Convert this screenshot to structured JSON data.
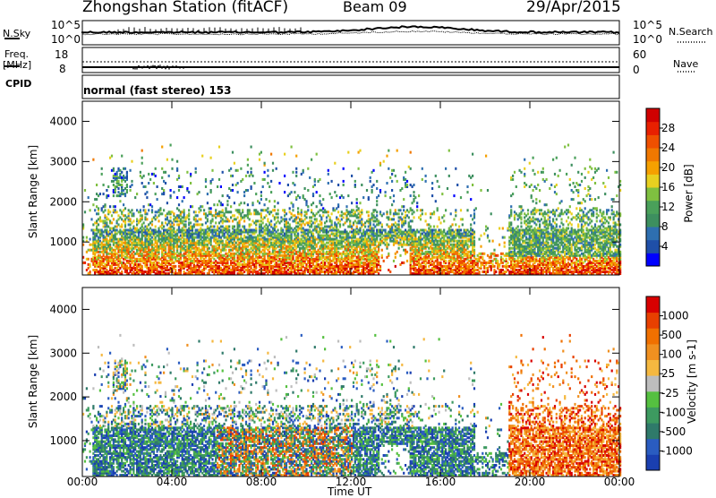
{
  "header": {
    "station": "Zhongshan Station (fitACF)",
    "beam": "Beam 09",
    "date": "29/Apr/2015"
  },
  "panels": {
    "nsky": {
      "label": "N.Sky",
      "top_tick": "10^5",
      "bottom_tick": "10^0",
      "right_top_tick": "10^5",
      "right_bottom_tick": "10^0",
      "right_label": "N.Search"
    },
    "freq": {
      "label_1": "Freq.",
      "label_2": "[MHz]",
      "top_tick": "18",
      "bottom_tick": "8",
      "right_top_tick": "60",
      "right_bottom_tick": "0",
      "right_label": "Nave"
    },
    "cpid": {
      "label": "CPID",
      "text": "normal (fast stereo) 153"
    }
  },
  "chart_data": [
    {
      "type": "heatmap",
      "name": "Power",
      "ylabel": "Slant Range [km]",
      "yticks": [
        "4000",
        "3000",
        "2000",
        "1000"
      ],
      "ylim": [
        180,
        4500
      ],
      "colorbar": {
        "label": "Power [dB]",
        "ticks": [
          "28",
          "24",
          "20",
          "16",
          "12",
          "8",
          "4"
        ],
        "colors": [
          "#0000ff",
          "#1f4fa8",
          "#2e6fb0",
          "#3d8f5f",
          "#4aa05a",
          "#7fc040",
          "#e8d020",
          "#f5a000",
          "#f07800",
          "#ef5000",
          "#e82000",
          "#d00000"
        ]
      }
    },
    {
      "type": "heatmap",
      "name": "Velocity",
      "ylabel": "Slant Range [km]",
      "yticks": [
        "4000",
        "3000",
        "2000",
        "1000"
      ],
      "ylim": [
        180,
        4500
      ],
      "colorbar": {
        "label": "Velocity [m s-1]",
        "ticks": [
          "1000",
          "500",
          "100",
          "25",
          "-25",
          "-100",
          "-500",
          "-1000"
        ],
        "colors": [
          "#1a3fb0",
          "#2a5cc0",
          "#2f7a6a",
          "#3d9a60",
          "#55c040",
          "#bdbdbd",
          "#f5b840",
          "#f09020",
          "#f07000",
          "#e84000",
          "#d80000"
        ]
      }
    }
  ],
  "xaxis": {
    "label": "Time UT",
    "ticks": [
      "00:00",
      "04:00",
      "08:00",
      "12:00",
      "16:00",
      "20:00",
      "00:00"
    ]
  }
}
